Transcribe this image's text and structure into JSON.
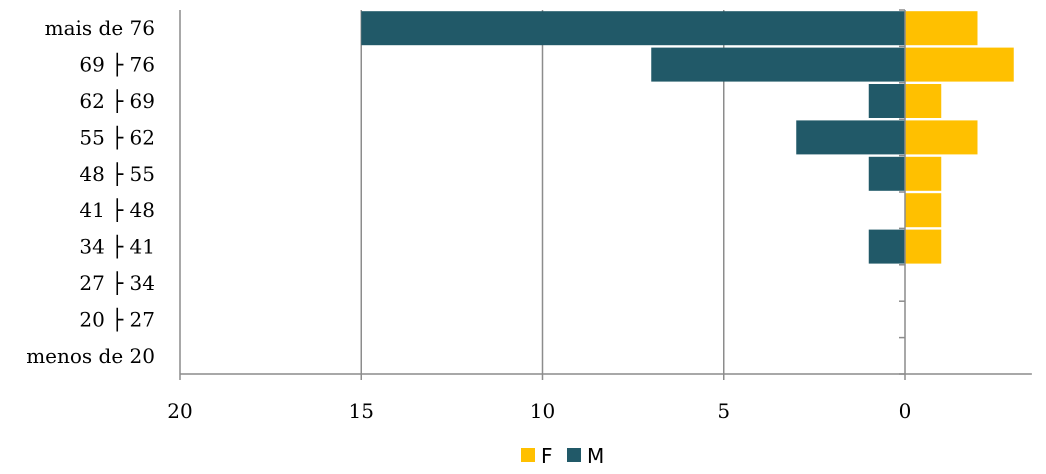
{
  "chart_data": {
    "type": "bar",
    "orientation": "horizontal",
    "layout": "population-pyramid",
    "categories": [
      "mais de 76",
      "69 ├ 76",
      "62 ├ 69",
      "55 ├ 62",
      "48 ├ 55",
      "41 ├ 48",
      "34 ├ 41",
      "27 ├ 34",
      "20 ├ 27",
      "menos de 20"
    ],
    "series": [
      {
        "name": "F",
        "color": "#FFC000",
        "direction": "right",
        "values": [
          2,
          3,
          1,
          2,
          1,
          1,
          1,
          0,
          0,
          0
        ]
      },
      {
        "name": "M",
        "color": "#215968",
        "direction": "left",
        "values": [
          15,
          7,
          1,
          3,
          1,
          0,
          1,
          0,
          0,
          0
        ]
      }
    ],
    "xaxis": {
      "ticks": [
        20,
        15,
        10,
        5,
        0
      ],
      "tick_labels": [
        "20",
        "15",
        "10",
        "5",
        "0"
      ],
      "left_max": 20,
      "right_max": 3.5
    },
    "grid": true,
    "legend": {
      "position": "bottom",
      "entries": [
        "F",
        "M"
      ]
    }
  }
}
